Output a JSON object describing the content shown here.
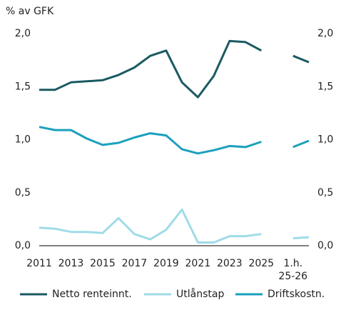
{
  "chart_data": {
    "type": "line",
    "y_label": "% av GFK",
    "categories": [
      "2011",
      null,
      "2013",
      null,
      "2015",
      null,
      "2017",
      null,
      "2019",
      null,
      "2021",
      null,
      "2023",
      null,
      "2025",
      null,
      "1.h. 25-26",
      null
    ],
    "series": [
      {
        "name": "Netto renteinnt.",
        "color": "#1b5a61",
        "values": [
          1.47,
          1.47,
          1.54,
          1.55,
          1.56,
          1.61,
          1.68,
          1.79,
          1.84,
          1.54,
          1.4,
          1.6,
          1.93,
          1.92,
          1.84,
          null,
          1.79,
          1.73
        ]
      },
      {
        "name": "Utlånstap",
        "color": "#9fdbe8",
        "values": [
          0.17,
          0.16,
          0.13,
          0.13,
          0.12,
          0.26,
          0.11,
          0.06,
          0.15,
          0.34,
          0.03,
          0.03,
          0.09,
          0.09,
          0.11,
          null,
          0.07,
          0.08
        ]
      },
      {
        "name": "Driftskostn.",
        "color": "#1ba0bd",
        "values": [
          1.12,
          1.09,
          1.09,
          1.01,
          0.95,
          0.97,
          1.02,
          1.06,
          1.04,
          0.91,
          0.87,
          0.9,
          0.94,
          0.93,
          0.98,
          null,
          0.93,
          0.99
        ]
      }
    ],
    "ylim": [
      0,
      2
    ],
    "yticks": [
      {
        "value": 0,
        "label": "0,0"
      },
      {
        "value": 0.5,
        "label": "0,5"
      },
      {
        "value": 1,
        "label": "1,0"
      },
      {
        "value": 1.5,
        "label": "1,5"
      },
      {
        "value": 2,
        "label": "2,0"
      }
    ],
    "y2lim": [
      0,
      2
    ],
    "y2ticks": [
      {
        "value": 0,
        "label": "0,0"
      },
      {
        "value": 0.5,
        "label": "0,5"
      },
      {
        "value": 1,
        "label": "1,0"
      },
      {
        "value": 1.5,
        "label": "1,5"
      },
      {
        "value": 2,
        "label": "2,0"
      }
    ],
    "grid": false,
    "legend": "bottom"
  }
}
